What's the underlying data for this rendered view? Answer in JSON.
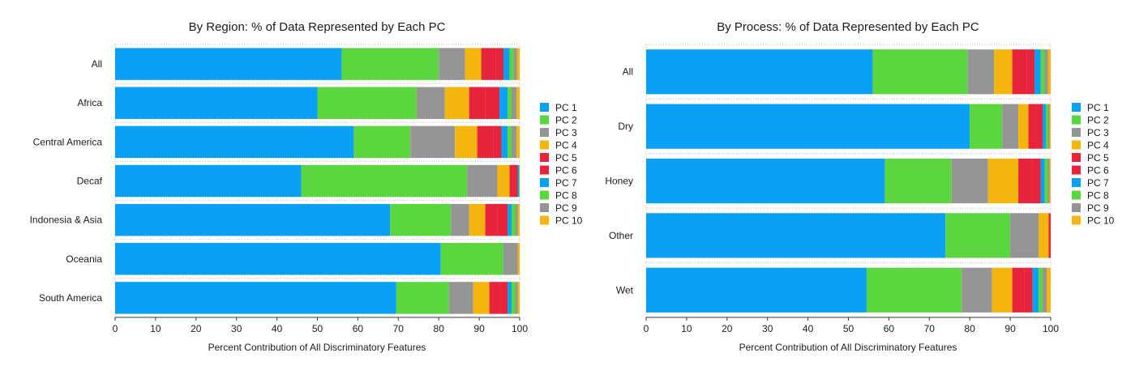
{
  "chart_data": [
    {
      "type": "bar",
      "orientation": "horizontal",
      "stacked": true,
      "title": "By Region: % of Data Represented by Each PC",
      "xlabel": "Percent Contribution of All Discriminatory Features",
      "ylabel": "",
      "xlim": [
        0,
        100
      ],
      "xticks": [
        0,
        10,
        20,
        30,
        40,
        50,
        60,
        70,
        80,
        90,
        100
      ],
      "legend": "right",
      "categories": [
        "All",
        "Africa",
        "Central America",
        "Decaf",
        "Indonesia & Asia",
        "Oceania",
        "South America"
      ],
      "series": [
        {
          "name": "PC 1",
          "values": [
            56,
            50,
            59,
            46,
            68,
            80.5,
            69.5
          ]
        },
        {
          "name": "PC 2",
          "values": [
            24,
            24.5,
            14,
            41,
            15,
            15.5,
            13
          ]
        },
        {
          "name": "PC 3",
          "values": [
            6.5,
            7,
            11,
            7.5,
            4.5,
            3.5,
            6
          ]
        },
        {
          "name": "PC 4",
          "values": [
            4,
            6,
            5.5,
            3,
            4,
            0.3,
            4
          ]
        },
        {
          "name": "PC 5",
          "values": [
            3.5,
            4,
            4,
            1,
            3,
            0,
            2.5
          ]
        },
        {
          "name": "PC 6",
          "values": [
            2,
            3.5,
            2,
            1,
            2.5,
            0,
            2
          ]
        },
        {
          "name": "PC 7",
          "values": [
            1.5,
            2,
            1.5,
            0.3,
            1,
            0,
            1
          ]
        },
        {
          "name": "PC 8",
          "values": [
            1,
            1,
            1,
            0.2,
            1,
            0,
            1
          ]
        },
        {
          "name": "PC 9",
          "values": [
            0.8,
            1.2,
            1.2,
            0,
            0.5,
            0,
            0.5
          ]
        },
        {
          "name": "PC 10",
          "values": [
            0.7,
            0.8,
            0.8,
            0,
            0.5,
            0.2,
            0.5
          ]
        }
      ]
    },
    {
      "type": "bar",
      "orientation": "horizontal",
      "stacked": true,
      "title": "By Process: % of Data Represented by Each PC",
      "xlabel": "Percent Contribution of All Discriminatory Features",
      "ylabel": "",
      "xlim": [
        0,
        100
      ],
      "xticks": [
        0,
        10,
        20,
        30,
        40,
        50,
        60,
        70,
        80,
        90,
        100
      ],
      "legend": "right",
      "categories": [
        "All",
        "Dry",
        "Honey",
        "Other",
        "Wet"
      ],
      "series": [
        {
          "name": "PC 1",
          "values": [
            56,
            80,
            59,
            74,
            54.5
          ]
        },
        {
          "name": "PC 2",
          "values": [
            23.5,
            8,
            16.5,
            16,
            23.5
          ]
        },
        {
          "name": "PC 3",
          "values": [
            6.5,
            4,
            9,
            7,
            7.5
          ]
        },
        {
          "name": "PC 4",
          "values": [
            4.5,
            2.5,
            7.5,
            2.5,
            5
          ]
        },
        {
          "name": "PC 5",
          "values": [
            3.5,
            2,
            3.5,
            0.3,
            3
          ]
        },
        {
          "name": "PC 6",
          "values": [
            2,
            1.5,
            2,
            0.2,
            2
          ]
        },
        {
          "name": "PC 7",
          "values": [
            1.5,
            0.8,
            1,
            0,
            1.5
          ]
        },
        {
          "name": "PC 8",
          "values": [
            1,
            0.6,
            0.8,
            0,
            1
          ]
        },
        {
          "name": "PC 9",
          "values": [
            0.8,
            0.3,
            0.4,
            0,
            1
          ]
        },
        {
          "name": "PC 10",
          "values": [
            0.7,
            0.3,
            0.3,
            0,
            1
          ]
        }
      ]
    }
  ],
  "colors": [
    "#0aa0f5",
    "#5cd63e",
    "#959595",
    "#f5b50f",
    "#e8243c",
    "#e8243c",
    "#0aa0f5",
    "#5cd63e",
    "#959595",
    "#f5b50f"
  ]
}
